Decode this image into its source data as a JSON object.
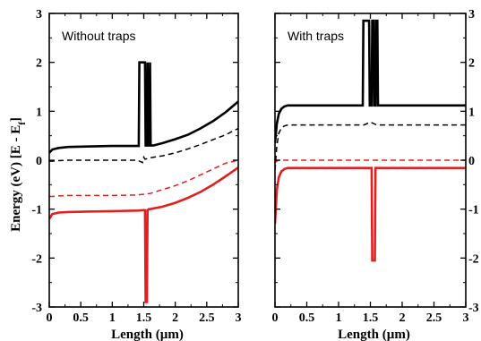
{
  "chart_data": [
    {
      "type": "line",
      "title": "Without traps",
      "xlabel": "Length (µm)",
      "ylabel": "Energy (eV) [E - E",
      "ylabel_sub": "f",
      "ylabel_end": "]",
      "xlim": [
        0,
        3
      ],
      "ylim": [
        -3,
        3
      ],
      "xticks": [
        0,
        0.5,
        1,
        1.5,
        2,
        2.5,
        3
      ],
      "xtick_labels": [
        "0",
        "0.5",
        "1",
        "1.5",
        "2",
        "2.5",
        "3"
      ],
      "yticks": [
        3,
        2,
        1,
        0,
        -1,
        -2,
        -3
      ],
      "ytick_labels": [
        "3",
        "2",
        "1",
        "0",
        "-1",
        "-2",
        "-3"
      ],
      "series": [
        {
          "color": "#000000",
          "style": "solid",
          "width": 2.6,
          "x": [
            0,
            0.05,
            0.15,
            0.3,
            0.6,
            1.0,
            1.4,
            1.42,
            1.43,
            1.52,
            1.53,
            1.55,
            1.56,
            1.57,
            1.58,
            1.6,
            1.61,
            1.65,
            1.8,
            2.0,
            2.2,
            2.4,
            2.6,
            2.8,
            3.0
          ],
          "y": [
            0.15,
            0.22,
            0.25,
            0.27,
            0.28,
            0.29,
            0.29,
            0.29,
            2.0,
            2.0,
            0.3,
            0.3,
            2.0,
            0.3,
            0.3,
            2.0,
            0.3,
            0.3,
            0.35,
            0.43,
            0.52,
            0.65,
            0.8,
            0.98,
            1.2
          ]
        },
        {
          "color": "#000000",
          "style": "dashed",
          "width": 1.5,
          "x": [
            0,
            0.05,
            0.15,
            0.3,
            0.6,
            1.0,
            1.4,
            1.48,
            1.5,
            1.52,
            1.6,
            1.8,
            2.0,
            2.2,
            2.4,
            2.6,
            2.8,
            3.0
          ],
          "y": [
            -0.02,
            -0.02,
            -0.01,
            0.0,
            0.0,
            0.0,
            0.0,
            -0.05,
            0.06,
            0.02,
            0.05,
            0.09,
            0.15,
            0.23,
            0.32,
            0.42,
            0.52,
            0.65
          ]
        },
        {
          "color": "#e02020",
          "style": "dashed",
          "width": 1.5,
          "x": [
            0,
            0.05,
            0.15,
            0.3,
            0.6,
            1.0,
            1.4,
            1.6,
            1.8,
            2.0,
            2.2,
            2.4,
            2.6,
            2.8,
            3.0
          ],
          "y": [
            -0.74,
            -0.74,
            -0.73,
            -0.72,
            -0.72,
            -0.72,
            -0.71,
            -0.68,
            -0.6,
            -0.52,
            -0.42,
            -0.3,
            -0.18,
            -0.06,
            0.0
          ]
        },
        {
          "color": "#e02020",
          "style": "solid",
          "width": 2.6,
          "x": [
            0,
            0.05,
            0.15,
            0.3,
            0.6,
            1.0,
            1.4,
            1.5,
            1.52,
            1.53,
            1.55,
            1.56,
            1.58,
            1.6,
            1.8,
            2.0,
            2.2,
            2.4,
            2.6,
            2.8,
            3.0
          ],
          "y": [
            -1.2,
            -1.1,
            -1.07,
            -1.06,
            -1.05,
            -1.04,
            -1.03,
            -1.02,
            -1.02,
            -2.9,
            -2.9,
            -1.02,
            -1.0,
            -1.0,
            -0.95,
            -0.87,
            -0.77,
            -0.65,
            -0.5,
            -0.33,
            -0.15
          ]
        }
      ]
    },
    {
      "type": "line",
      "title": "With traps",
      "xlabel": "Length (µm)",
      "xlim": [
        0,
        3
      ],
      "ylim": [
        -3,
        3
      ],
      "xticks": [
        0,
        0.5,
        1,
        1.5,
        2,
        2.5,
        3
      ],
      "xtick_labels": [
        "0",
        "0.5",
        "1",
        "1.5",
        "2",
        "2.5",
        "3"
      ],
      "yticks": [
        3,
        2,
        1,
        0,
        -1,
        -2,
        -3
      ],
      "ytick_labels": [
        "3",
        "2",
        "1",
        "0",
        "-1",
        "-2",
        "-3"
      ],
      "series": [
        {
          "color": "#000000",
          "style": "solid",
          "width": 2.6,
          "x": [
            0,
            0.03,
            0.06,
            0.1,
            0.15,
            0.2,
            0.4,
            1.0,
            1.38,
            1.39,
            1.48,
            1.49,
            1.52,
            1.53,
            1.55,
            1.56,
            1.58,
            1.59,
            1.61,
            1.62,
            2.0,
            2.5,
            3.0
          ],
          "y": [
            0.35,
            0.75,
            0.95,
            1.05,
            1.1,
            1.12,
            1.12,
            1.12,
            1.12,
            2.85,
            2.85,
            1.12,
            1.12,
            2.85,
            2.85,
            1.12,
            1.12,
            2.85,
            2.85,
            1.12,
            1.12,
            1.12,
            1.12
          ]
        },
        {
          "color": "#000000",
          "style": "dashed",
          "width": 1.5,
          "x": [
            0,
            0.03,
            0.06,
            0.1,
            0.15,
            0.2,
            0.4,
            1.0,
            1.4,
            1.5,
            1.6,
            2.0,
            2.5,
            3.0
          ],
          "y": [
            -0.2,
            0.3,
            0.55,
            0.66,
            0.7,
            0.72,
            0.72,
            0.72,
            0.72,
            0.78,
            0.72,
            0.72,
            0.72,
            0.72
          ]
        },
        {
          "color": "#e02020",
          "style": "dashed",
          "width": 1.5,
          "x": [
            0,
            0.05,
            0.1,
            0.5,
            1.0,
            1.5,
            2.0,
            2.5,
            3.0
          ],
          "y": [
            -0.05,
            0.0,
            0.0,
            0.0,
            0.0,
            0.0,
            0.0,
            0.0,
            0.0
          ]
        },
        {
          "color": "#e02020",
          "style": "solid",
          "width": 2.6,
          "x": [
            0,
            0.03,
            0.06,
            0.1,
            0.15,
            0.2,
            0.4,
            1.0,
            1.52,
            1.53,
            1.57,
            1.58,
            2.0,
            2.5,
            3.0
          ],
          "y": [
            -1.3,
            -0.6,
            -0.35,
            -0.23,
            -0.18,
            -0.16,
            -0.16,
            -0.16,
            -0.16,
            -2.05,
            -2.05,
            -0.16,
            -0.16,
            -0.16,
            -0.16
          ]
        }
      ]
    }
  ]
}
